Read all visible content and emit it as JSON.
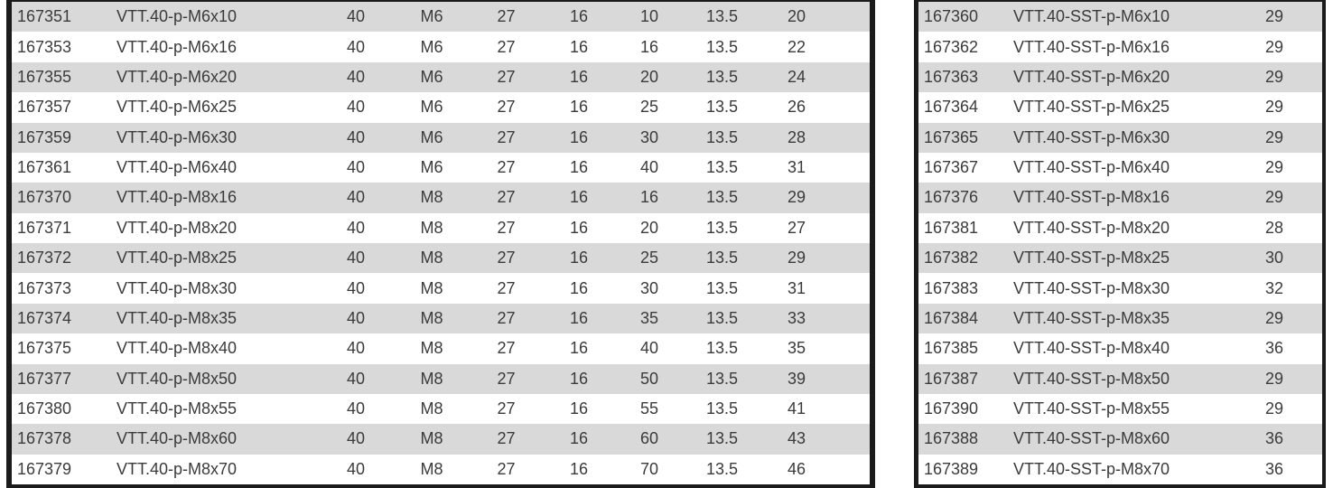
{
  "colors": {
    "stripe_gray": "#d9d9d9",
    "text_color": "#3b3b3b",
    "border_black": "#1b1b1b",
    "page_bg": "#ffffff"
  },
  "tables": {
    "left": {
      "description": "catalog-table-standard",
      "rows": [
        [
          "167351",
          "VTT.40-p-M6x10",
          "40",
          "M6",
          "27",
          "16",
          "10",
          "13.5",
          "20"
        ],
        [
          "167353",
          "VTT.40-p-M6x16",
          "40",
          "M6",
          "27",
          "16",
          "16",
          "13.5",
          "22"
        ],
        [
          "167355",
          "VTT.40-p-M6x20",
          "40",
          "M6",
          "27",
          "16",
          "20",
          "13.5",
          "24"
        ],
        [
          "167357",
          "VTT.40-p-M6x25",
          "40",
          "M6",
          "27",
          "16",
          "25",
          "13.5",
          "26"
        ],
        [
          "167359",
          "VTT.40-p-M6x30",
          "40",
          "M6",
          "27",
          "16",
          "30",
          "13.5",
          "28"
        ],
        [
          "167361",
          "VTT.40-p-M6x40",
          "40",
          "M6",
          "27",
          "16",
          "40",
          "13.5",
          "31"
        ],
        [
          "167370",
          "VTT.40-p-M8x16",
          "40",
          "M8",
          "27",
          "16",
          "16",
          "13.5",
          "29"
        ],
        [
          "167371",
          "VTT.40-p-M8x20",
          "40",
          "M8",
          "27",
          "16",
          "20",
          "13.5",
          "27"
        ],
        [
          "167372",
          "VTT.40-p-M8x25",
          "40",
          "M8",
          "27",
          "16",
          "25",
          "13.5",
          "29"
        ],
        [
          "167373",
          "VTT.40-p-M8x30",
          "40",
          "M8",
          "27",
          "16",
          "30",
          "13.5",
          "31"
        ],
        [
          "167374",
          "VTT.40-p-M8x35",
          "40",
          "M8",
          "27",
          "16",
          "35",
          "13.5",
          "33"
        ],
        [
          "167375",
          "VTT.40-p-M8x40",
          "40",
          "M8",
          "27",
          "16",
          "40",
          "13.5",
          "35"
        ],
        [
          "167377",
          "VTT.40-p-M8x50",
          "40",
          "M8",
          "27",
          "16",
          "50",
          "13.5",
          "39"
        ],
        [
          "167380",
          "VTT.40-p-M8x55",
          "40",
          "M8",
          "27",
          "16",
          "55",
          "13.5",
          "41"
        ],
        [
          "167378",
          "VTT.40-p-M8x60",
          "40",
          "M8",
          "27",
          "16",
          "60",
          "13.5",
          "43"
        ],
        [
          "167379",
          "VTT.40-p-M8x70",
          "40",
          "M8",
          "27",
          "16",
          "70",
          "13.5",
          "46"
        ]
      ]
    },
    "right": {
      "description": "catalog-table-sst",
      "rows": [
        [
          "167360",
          "VTT.40-SST-p-M6x10",
          "29"
        ],
        [
          "167362",
          "VTT.40-SST-p-M6x16",
          "29"
        ],
        [
          "167363",
          "VTT.40-SST-p-M6x20",
          "29"
        ],
        [
          "167364",
          "VTT.40-SST-p-M6x25",
          "29"
        ],
        [
          "167365",
          "VTT.40-SST-p-M6x30",
          "29"
        ],
        [
          "167367",
          "VTT.40-SST-p-M6x40",
          "29"
        ],
        [
          "167376",
          "VTT.40-SST-p-M8x16",
          "29"
        ],
        [
          "167381",
          "VTT.40-SST-p-M8x20",
          "28"
        ],
        [
          "167382",
          "VTT.40-SST-p-M8x25",
          "30"
        ],
        [
          "167383",
          "VTT.40-SST-p-M8x30",
          "32"
        ],
        [
          "167384",
          "VTT.40-SST-p-M8x35",
          "29"
        ],
        [
          "167385",
          "VTT.40-SST-p-M8x40",
          "36"
        ],
        [
          "167387",
          "VTT.40-SST-p-M8x50",
          "29"
        ],
        [
          "167390",
          "VTT.40-SST-p-M8x55",
          "29"
        ],
        [
          "167388",
          "VTT.40-SST-p-M8x60",
          "36"
        ],
        [
          "167389",
          "VTT.40-SST-p-M8x70",
          "36"
        ]
      ]
    }
  }
}
